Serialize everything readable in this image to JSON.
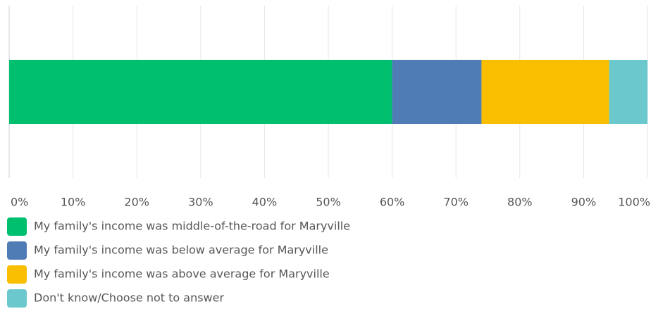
{
  "chart_data": {
    "type": "stacked_bar",
    "orientation": "horizontal",
    "categories": [
      null
    ],
    "series": [
      {
        "name": "My family's income was middle-of-the-road for Maryville",
        "color": "#00bf6f",
        "values": [
          60
        ]
      },
      {
        "name": "My family's income was below average for Maryville",
        "color": "#507cb6",
        "values": [
          14
        ]
      },
      {
        "name": "My family's income was above average for Maryville",
        "color": "#f9be00",
        "values": [
          20
        ]
      },
      {
        "name": "Don't know/Choose not to answer",
        "color": "#6bc8cd",
        "values": [
          6
        ]
      }
    ],
    "xlim": [
      0,
      100
    ],
    "xticks": [
      {
        "value": 0,
        "label": "0%"
      },
      {
        "value": 10,
        "label": "10%"
      },
      {
        "value": 20,
        "label": "20%"
      },
      {
        "value": 30,
        "label": "30%"
      },
      {
        "value": 40,
        "label": "40%"
      },
      {
        "value": 50,
        "label": "50%"
      },
      {
        "value": 60,
        "label": "60%"
      },
      {
        "value": 70,
        "label": "70%"
      },
      {
        "value": 80,
        "label": "80%"
      },
      {
        "value": 90,
        "label": "90%"
      },
      {
        "value": 100,
        "label": "100%"
      }
    ],
    "grid": true,
    "legend": "bottom"
  }
}
